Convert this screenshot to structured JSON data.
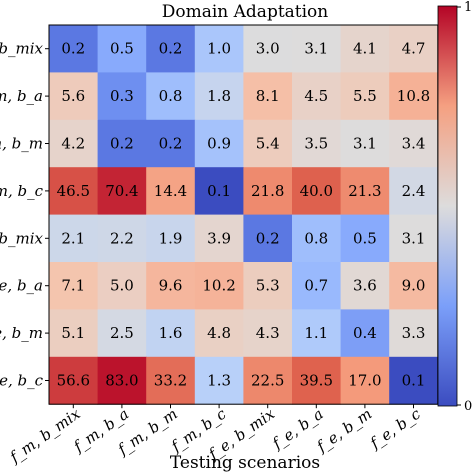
{
  "chart_data": {
    "type": "heatmap",
    "title": "Domain Adaptation",
    "xlabel": "Testing scenarios",
    "ylabel": "",
    "x_tick_labels": [
      "f_m, b_mix",
      "f_m, b_a",
      "f_m, b_m",
      "f_m, b_c",
      "f_e, b_mix",
      "f_e, b_a",
      "f_e, b_m",
      "f_e, b_c"
    ],
    "y_tick_labels": [
      "f_m, b_mix",
      "f_m, b_a",
      "f_m, b_m",
      "f_m, b_c",
      "f_e, b_mix",
      "f_e, b_a",
      "f_e, b_m",
      "f_e, b_c"
    ],
    "values": [
      [
        0.2,
        0.5,
        0.2,
        1.0,
        3.0,
        3.1,
        4.1,
        4.7
      ],
      [
        5.6,
        0.3,
        0.8,
        1.8,
        8.1,
        4.5,
        5.5,
        10.8
      ],
      [
        4.2,
        0.2,
        0.2,
        0.9,
        5.4,
        3.5,
        3.1,
        3.4
      ],
      [
        46.5,
        70.4,
        14.4,
        0.1,
        21.8,
        40.0,
        21.3,
        2.4
      ],
      [
        2.1,
        2.2,
        1.9,
        3.9,
        0.2,
        0.8,
        0.5,
        3.1
      ],
      [
        7.1,
        5.0,
        9.6,
        10.2,
        5.3,
        0.7,
        3.6,
        9.0
      ],
      [
        5.1,
        2.5,
        1.6,
        4.8,
        4.3,
        1.1,
        0.4,
        3.3
      ],
      [
        56.6,
        83.0,
        33.2,
        1.3,
        22.5,
        39.5,
        17.0,
        0.1
      ]
    ],
    "colormap": "coolwarm",
    "colorbar_ticks": [
      "1",
      "0"
    ],
    "grid": false
  }
}
